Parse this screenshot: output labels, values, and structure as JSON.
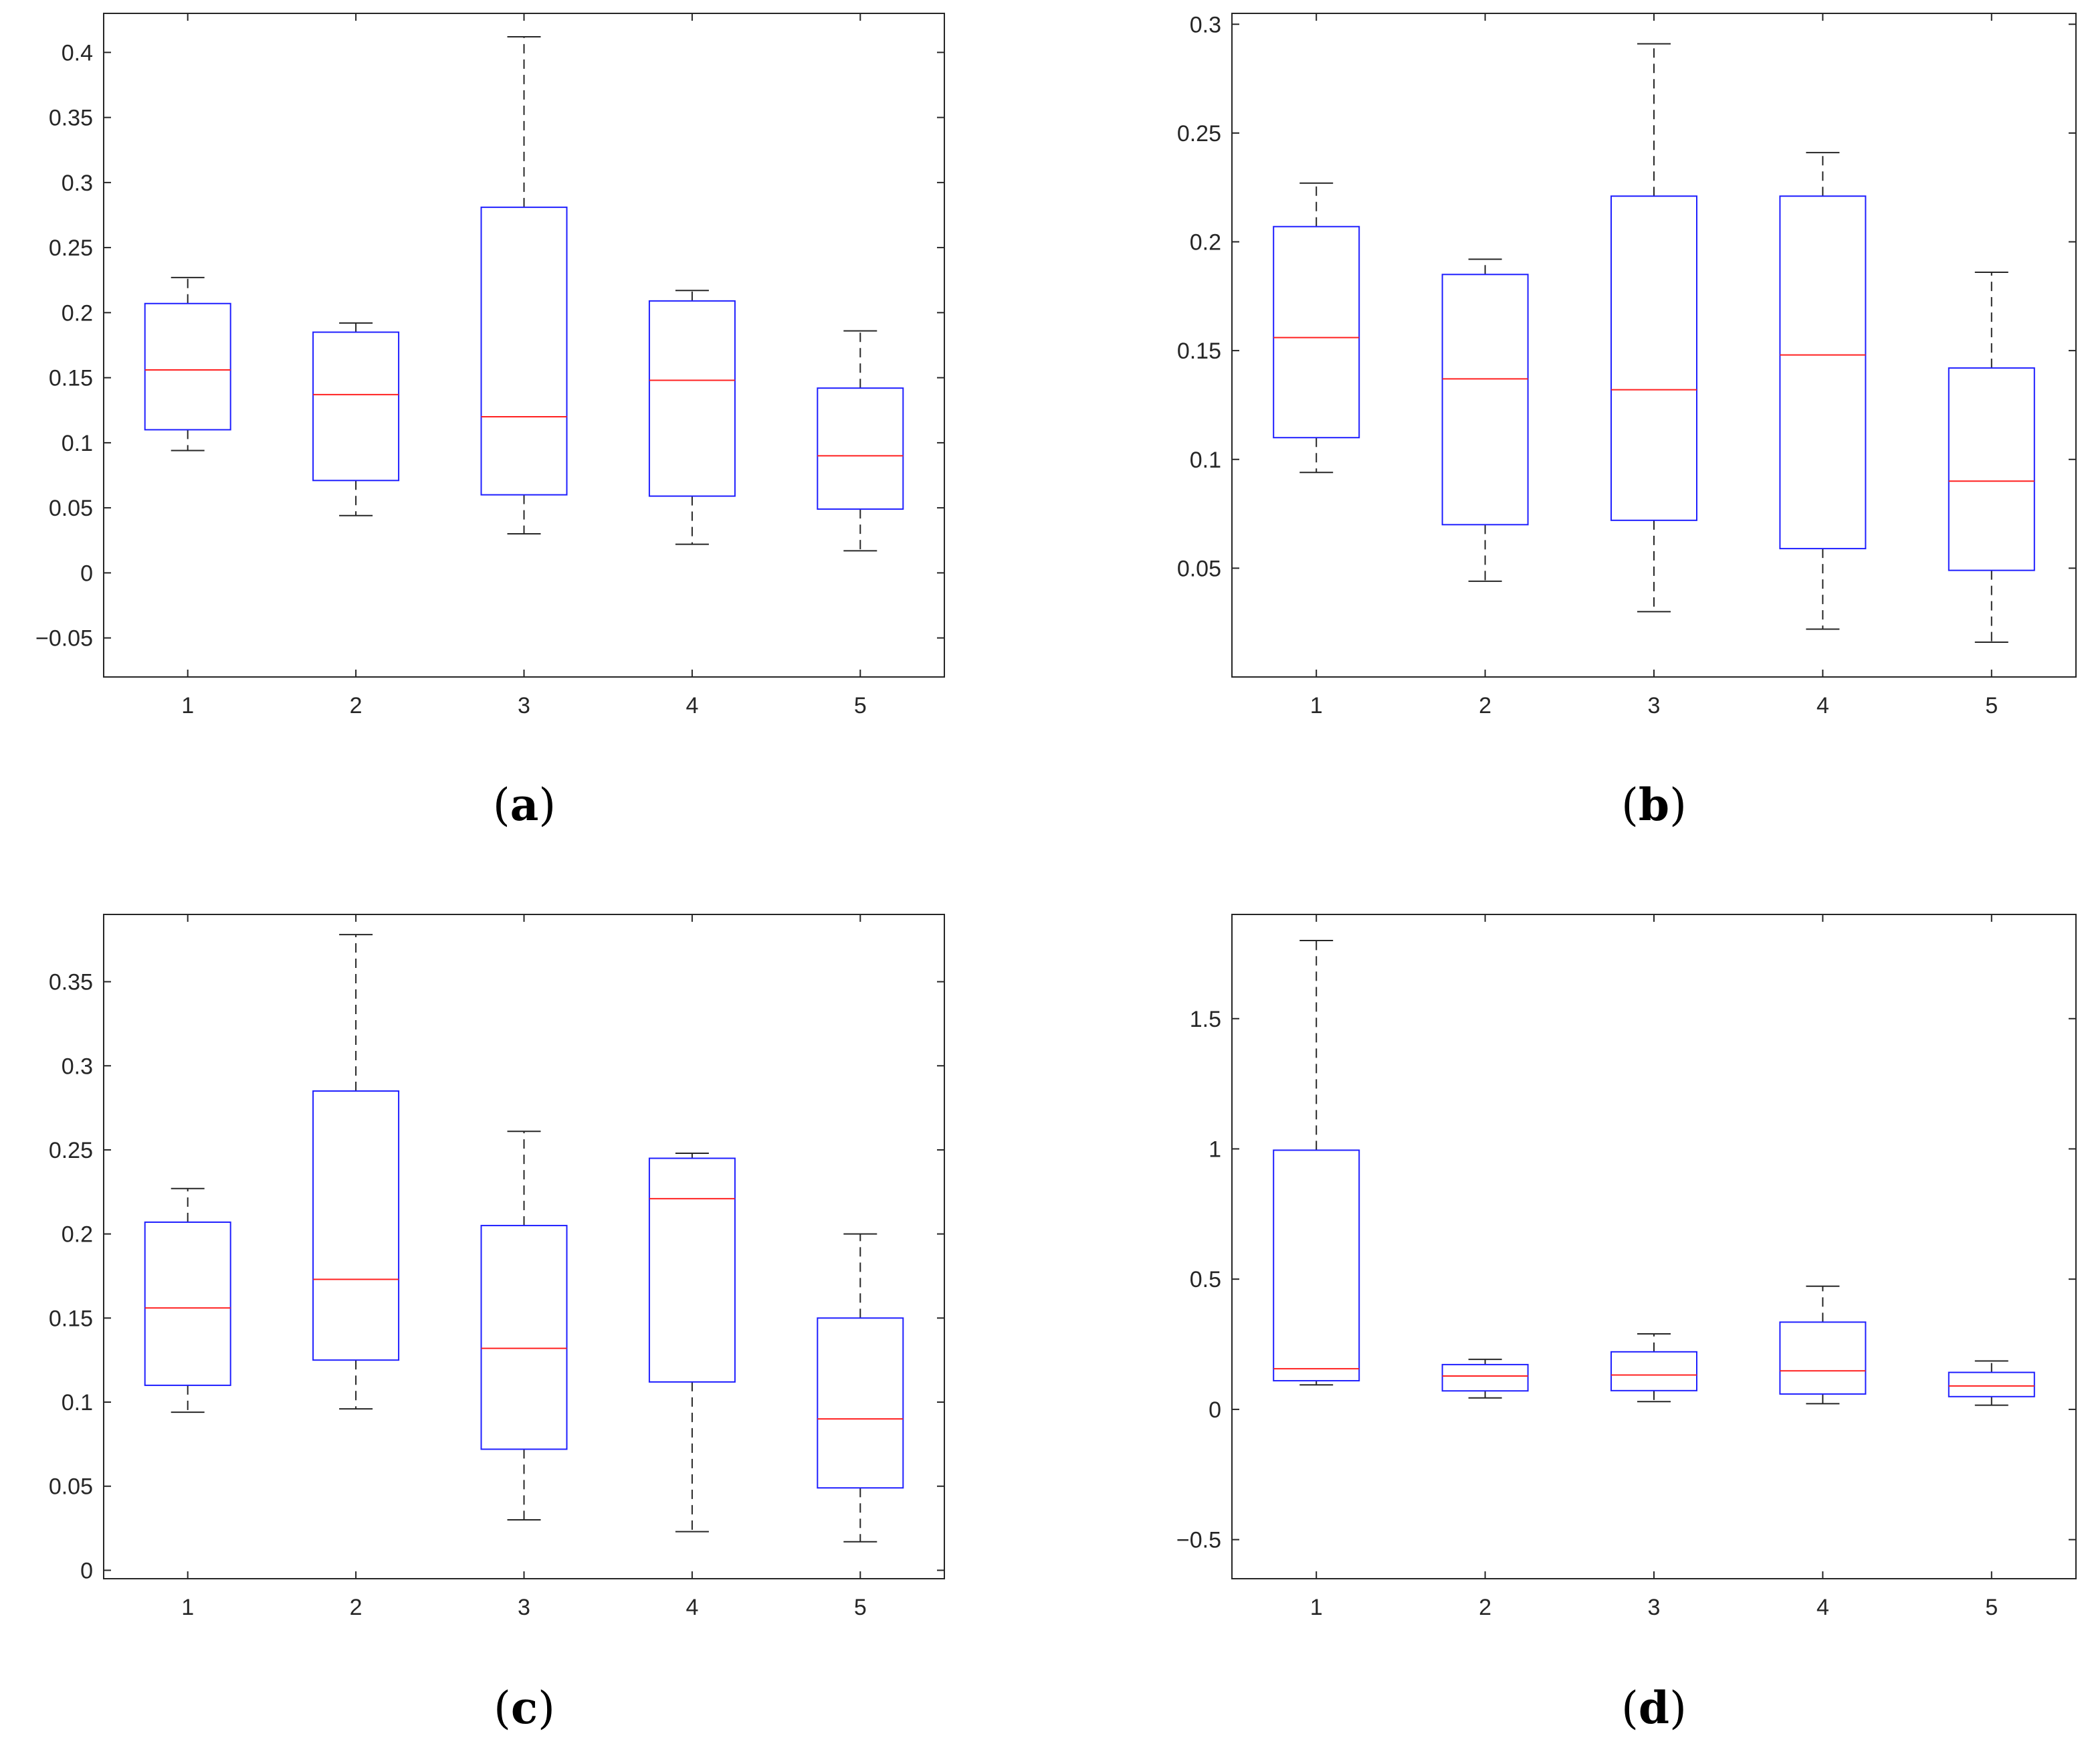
{
  "figure": {
    "colors": {
      "box": "#1f1fff",
      "median": "#ff2020",
      "whisker": "#262626",
      "axis": "#262626",
      "background": "#ffffff"
    }
  },
  "chart_data": [
    {
      "type": "boxplot",
      "panel": "a",
      "caption": {
        "open": "(",
        "letter": "a",
        "close": ")"
      },
      "categories": [
        "1",
        "2",
        "3",
        "4",
        "5"
      ],
      "ylim": [
        -0.08,
        0.43
      ],
      "yticks": [
        -0.05,
        0,
        0.05,
        0.1,
        0.15,
        0.2,
        0.25,
        0.3,
        0.35,
        0.4
      ],
      "ytick_labels": [
        "−0.05",
        "0",
        "0.05",
        "0.1",
        "0.15",
        "0.2",
        "0.25",
        "0.3",
        "0.35",
        "0.4"
      ],
      "boxes": [
        {
          "min": 0.094,
          "q1": 0.11,
          "median": 0.156,
          "q3": 0.207,
          "max": 0.227
        },
        {
          "min": 0.044,
          "q1": 0.071,
          "median": 0.137,
          "q3": 0.185,
          "max": 0.192
        },
        {
          "min": 0.03,
          "q1": 0.06,
          "median": 0.12,
          "q3": 0.281,
          "max": 0.412
        },
        {
          "min": 0.022,
          "q1": 0.059,
          "median": 0.148,
          "q3": 0.209,
          "max": 0.217
        },
        {
          "min": 0.017,
          "q1": 0.049,
          "median": 0.09,
          "q3": 0.142,
          "max": 0.186
        }
      ]
    },
    {
      "type": "boxplot",
      "panel": "b",
      "caption": {
        "open": "(",
        "letter": "b",
        "close": ")"
      },
      "categories": [
        "1",
        "2",
        "3",
        "4",
        "5"
      ],
      "ylim": [
        0.0,
        0.305
      ],
      "yticks": [
        0.05,
        0.1,
        0.15,
        0.2,
        0.25,
        0.3
      ],
      "ytick_labels": [
        "0.05",
        "0.1",
        "0.15",
        "0.2",
        "0.25",
        "0.3"
      ],
      "boxes": [
        {
          "min": 0.094,
          "q1": 0.11,
          "median": 0.156,
          "q3": 0.207,
          "max": 0.227
        },
        {
          "min": 0.044,
          "q1": 0.07,
          "median": 0.137,
          "q3": 0.185,
          "max": 0.192
        },
        {
          "min": 0.03,
          "q1": 0.072,
          "median": 0.132,
          "q3": 0.221,
          "max": 0.291
        },
        {
          "min": 0.022,
          "q1": 0.059,
          "median": 0.148,
          "q3": 0.221,
          "max": 0.241
        },
        {
          "min": 0.016,
          "q1": 0.049,
          "median": 0.09,
          "q3": 0.142,
          "max": 0.186
        }
      ]
    },
    {
      "type": "boxplot",
      "panel": "c",
      "caption": {
        "open": "(",
        "letter": "c",
        "close": ")"
      },
      "categories": [
        "1",
        "2",
        "3",
        "4",
        "5"
      ],
      "ylim": [
        -0.005,
        0.39
      ],
      "yticks": [
        0,
        0.05,
        0.1,
        0.15,
        0.2,
        0.25,
        0.3,
        0.35
      ],
      "ytick_labels": [
        "0",
        "0.05",
        "0.1",
        "0.15",
        "0.2",
        "0.25",
        "0.3",
        "0.35"
      ],
      "boxes": [
        {
          "min": 0.094,
          "q1": 0.11,
          "median": 0.156,
          "q3": 0.207,
          "max": 0.227
        },
        {
          "min": 0.096,
          "q1": 0.125,
          "median": 0.173,
          "q3": 0.285,
          "max": 0.378
        },
        {
          "min": 0.03,
          "q1": 0.072,
          "median": 0.132,
          "q3": 0.205,
          "max": 0.261
        },
        {
          "min": 0.023,
          "q1": 0.112,
          "median": 0.221,
          "q3": 0.245,
          "max": 0.248
        },
        {
          "min": 0.017,
          "q1": 0.049,
          "median": 0.09,
          "q3": 0.15,
          "max": 0.2
        }
      ]
    },
    {
      "type": "boxplot",
      "panel": "d",
      "caption": {
        "open": "(",
        "letter": "d",
        "close": ")"
      },
      "categories": [
        "1",
        "2",
        "3",
        "4",
        "5"
      ],
      "ylim": [
        -0.65,
        1.9
      ],
      "yticks": [
        -0.5,
        0,
        0.5,
        1,
        1.5
      ],
      "ytick_labels": [
        "−0.5",
        "0",
        "0.5",
        "1",
        "1.5"
      ],
      "boxes": [
        {
          "min": 0.094,
          "q1": 0.11,
          "median": 0.156,
          "q3": 0.995,
          "max": 1.8
        },
        {
          "min": 0.044,
          "q1": 0.071,
          "median": 0.128,
          "q3": 0.172,
          "max": 0.192
        },
        {
          "min": 0.03,
          "q1": 0.072,
          "median": 0.132,
          "q3": 0.221,
          "max": 0.29
        },
        {
          "min": 0.022,
          "q1": 0.059,
          "median": 0.148,
          "q3": 0.335,
          "max": 0.473
        },
        {
          "min": 0.016,
          "q1": 0.049,
          "median": 0.09,
          "q3": 0.142,
          "max": 0.186
        }
      ]
    }
  ]
}
